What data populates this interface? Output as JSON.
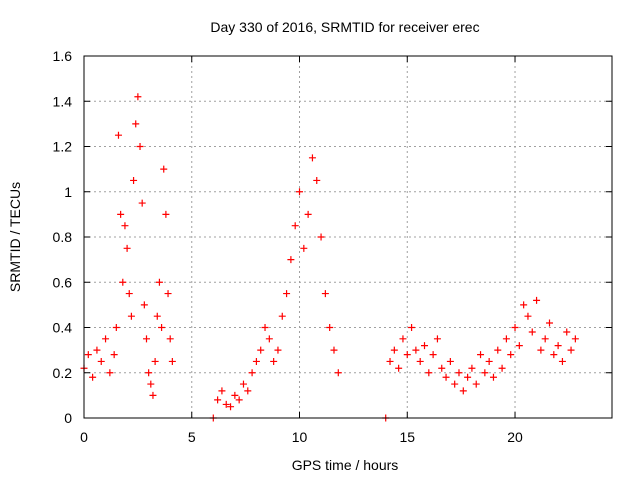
{
  "chart_data": {
    "type": "scatter",
    "title": "Day 330 of 2016, SRMTID for receiver erec",
    "xlabel": "GPS time / hours",
    "ylabel": "SRMTID / TECUs",
    "xlim": [
      0,
      24.5
    ],
    "ylim": [
      0,
      1.6
    ],
    "xticks": [
      0,
      5,
      10,
      15,
      20
    ],
    "xtick_labels": [
      "0",
      "5",
      "10",
      "15",
      "20"
    ],
    "yticks": [
      0,
      0.2,
      0.4,
      0.6,
      0.8,
      1.0,
      1.2,
      1.4,
      1.6
    ],
    "ytick_labels": [
      "0",
      "0.2",
      "0.4",
      "0.6",
      "0.8",
      "1",
      "1.2",
      "1.4",
      "1.6"
    ],
    "grid": true,
    "marker": "+",
    "series": [
      {
        "name": "SRMTID",
        "color": "#ff0000",
        "x": [
          0.0,
          0.2,
          0.4,
          0.6,
          0.8,
          1.0,
          1.2,
          1.4,
          1.5,
          1.6,
          1.7,
          1.8,
          1.9,
          2.0,
          2.1,
          2.2,
          2.3,
          2.4,
          2.5,
          2.6,
          2.7,
          2.8,
          2.9,
          3.0,
          3.1,
          3.2,
          3.3,
          3.4,
          3.5,
          3.6,
          3.7,
          3.8,
          3.9,
          4.0,
          4.1,
          6.0,
          6.2,
          6.4,
          6.6,
          6.8,
          7.0,
          7.2,
          7.4,
          7.6,
          7.8,
          8.0,
          8.2,
          8.4,
          8.6,
          8.8,
          9.0,
          9.2,
          9.4,
          9.6,
          9.8,
          10.0,
          10.2,
          10.4,
          10.6,
          10.8,
          11.0,
          11.2,
          11.4,
          11.6,
          11.8,
          14.0,
          14.2,
          14.4,
          14.6,
          14.8,
          15.0,
          15.2,
          15.4,
          15.6,
          15.8,
          16.0,
          16.2,
          16.4,
          16.6,
          16.8,
          17.0,
          17.2,
          17.4,
          17.6,
          17.8,
          18.0,
          18.2,
          18.4,
          18.6,
          18.8,
          19.0,
          19.2,
          19.4,
          19.6,
          19.8,
          20.0,
          20.2,
          20.4,
          20.6,
          20.8,
          21.0,
          21.2,
          21.4,
          21.6,
          21.8,
          22.0,
          22.2,
          22.4,
          22.6,
          22.8
        ],
        "y": [
          0.22,
          0.28,
          0.18,
          0.3,
          0.25,
          0.35,
          0.2,
          0.28,
          0.4,
          1.25,
          0.9,
          0.6,
          0.85,
          0.75,
          0.55,
          0.45,
          1.05,
          1.3,
          1.42,
          1.2,
          0.95,
          0.5,
          0.35,
          0.2,
          0.15,
          0.1,
          0.25,
          0.45,
          0.6,
          0.4,
          1.1,
          0.9,
          0.55,
          0.35,
          0.25,
          0.0,
          0.08,
          0.12,
          0.06,
          0.05,
          0.1,
          0.08,
          0.15,
          0.12,
          0.2,
          0.25,
          0.3,
          0.4,
          0.35,
          0.25,
          0.3,
          0.45,
          0.55,
          0.7,
          0.85,
          1.0,
          0.75,
          0.9,
          1.15,
          1.05,
          0.8,
          0.55,
          0.4,
          0.3,
          0.2,
          0.0,
          0.25,
          0.3,
          0.22,
          0.35,
          0.28,
          0.4,
          0.3,
          0.25,
          0.32,
          0.2,
          0.28,
          0.35,
          0.22,
          0.18,
          0.25,
          0.15,
          0.2,
          0.12,
          0.18,
          0.22,
          0.15,
          0.28,
          0.2,
          0.25,
          0.18,
          0.3,
          0.22,
          0.35,
          0.28,
          0.4,
          0.32,
          0.5,
          0.45,
          0.38,
          0.52,
          0.3,
          0.35,
          0.42,
          0.28,
          0.32,
          0.25,
          0.38,
          0.3,
          0.35
        ]
      }
    ]
  }
}
